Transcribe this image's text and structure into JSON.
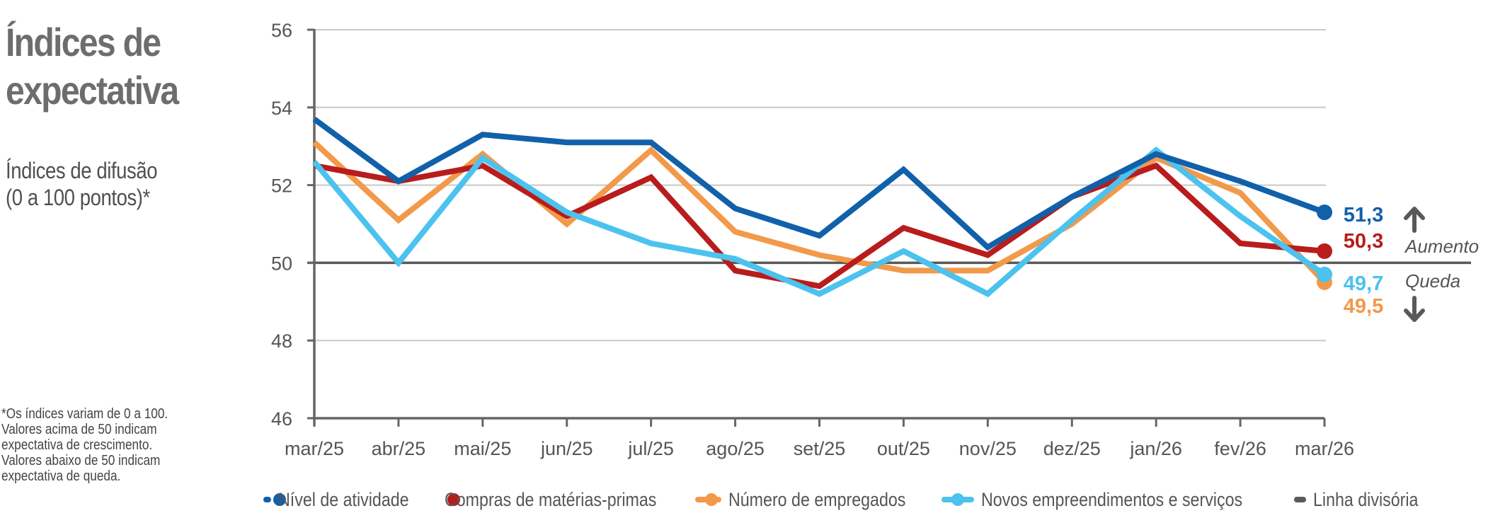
{
  "header": {
    "title_lines": [
      "Índices de",
      "expectativa"
    ],
    "subtitle_lines": [
      "Índices de difusão",
      "(0 a 100 pontos)*"
    ]
  },
  "footnote": {
    "lines": [
      "*Os índices variam de 0 a 100.",
      "Valores acima de 50 indicam",
      "expectativa de crescimento.",
      "Valores abaixo de 50 indicam",
      "expectativa de queda."
    ]
  },
  "annotations": {
    "increase_label": "Aumento",
    "decrease_label": "Queda",
    "increase_icon": "arrow-up-icon",
    "decrease_icon": "arrow-down-icon"
  },
  "colors": {
    "nivel": "#1160AA",
    "compras": "#B81C1C",
    "empregados": "#F2994A",
    "novos": "#4CC2EE",
    "divisoria": "#595959",
    "grid": "#c8c8c8",
    "axis": "#666666"
  },
  "chart_data": {
    "type": "line",
    "title": "Índices de expectativa",
    "subtitle": "Índices de difusão (0 a 100 pontos)*",
    "xlabel": "",
    "ylabel": "",
    "categories": [
      "mar/25",
      "abr/25",
      "mai/25",
      "jun/25",
      "jul/25",
      "ago/25",
      "set/25",
      "out/25",
      "nov/25",
      "dez/25",
      "jan/26",
      "fev/26",
      "mar/26"
    ],
    "ylim": [
      46,
      56
    ],
    "yticks": [
      "46",
      "48",
      "50",
      "52",
      "54",
      "56"
    ],
    "grid": true,
    "legend_position": "bottom",
    "series": [
      {
        "key": "nivel",
        "name": "Nível de atividade",
        "values": [
          53.7,
          52.1,
          53.3,
          53.1,
          53.1,
          51.4,
          50.7,
          52.4,
          50.4,
          51.7,
          52.8,
          52.1,
          51.3
        ],
        "end_label": "51,3"
      },
      {
        "key": "compras",
        "name": "Compras de matérias-primas",
        "values": [
          52.5,
          52.1,
          52.5,
          51.2,
          52.2,
          49.8,
          49.4,
          50.9,
          50.2,
          51.7,
          52.5,
          50.5,
          50.3
        ],
        "end_label": "50,3"
      },
      {
        "key": "empregados",
        "name": "Número de empregados",
        "values": [
          53.1,
          51.1,
          52.8,
          51.0,
          52.9,
          50.8,
          50.2,
          49.8,
          49.8,
          51.0,
          52.7,
          51.8,
          49.5
        ],
        "end_label": "49,5"
      },
      {
        "key": "novos",
        "name": "Novos empreendimentos e serviços",
        "values": [
          52.6,
          50.0,
          52.7,
          51.3,
          50.5,
          50.1,
          49.2,
          50.3,
          49.2,
          51.1,
          52.9,
          51.2,
          49.7
        ],
        "end_label": "49,7"
      }
    ],
    "reference_line": {
      "name": "Linha divisória",
      "value": 50
    }
  }
}
